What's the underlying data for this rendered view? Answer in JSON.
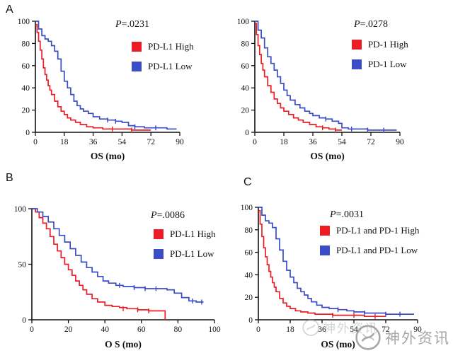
{
  "figure": {
    "section_labels": [
      {
        "text": "A"
      },
      {
        "text": "B"
      },
      {
        "text": "C"
      }
    ],
    "watermark": {
      "text": "神外资讯"
    }
  },
  "chart_data": [
    {
      "type": "line",
      "subtype": "kaplan-meier-step",
      "panel": "A-left",
      "p_label": "P",
      "p_value": "=.0231",
      "xlabel": "OS (mo)",
      "ylabel": "",
      "x_ticks": [
        0,
        18,
        36,
        54,
        72,
        90
      ],
      "y_ticks": [
        0,
        20,
        40,
        60,
        80,
        100
      ],
      "xlim": [
        0,
        90
      ],
      "ylim": [
        0,
        100
      ],
      "grid": false,
      "legend_position": "upper-right-inset",
      "legend": [
        {
          "label": "PD-L1 High",
          "color": "#ec1c24"
        },
        {
          "label": "PD-L1 Low",
          "color": "#3b4cc8"
        }
      ],
      "series": [
        {
          "name": "PD-L1 High",
          "color": "#ec1c24",
          "points": [
            [
              0,
              97
            ],
            [
              1,
              90
            ],
            [
              2,
              82
            ],
            [
              3,
              74
            ],
            [
              4,
              66
            ],
            [
              5,
              58
            ],
            [
              6,
              52
            ],
            [
              7,
              47
            ],
            [
              8,
              42
            ],
            [
              9,
              38
            ],
            [
              10,
              34
            ],
            [
              12,
              28
            ],
            [
              14,
              23
            ],
            [
              16,
              19
            ],
            [
              18,
              16
            ],
            [
              20,
              13
            ],
            [
              22,
              11
            ],
            [
              25,
              9
            ],
            [
              28,
              7
            ],
            [
              32,
              5
            ],
            [
              36,
              4
            ],
            [
              42,
              3
            ],
            [
              48,
              3
            ],
            [
              60,
              2
            ],
            [
              72,
              2
            ]
          ],
          "censor_marks": [
            [
              48,
              3
            ],
            [
              60,
              2
            ]
          ]
        },
        {
          "name": "PD-L1 Low",
          "color": "#3b4cc8",
          "points": [
            [
              0,
              100
            ],
            [
              2,
              93
            ],
            [
              4,
              87
            ],
            [
              6,
              84
            ],
            [
              8,
              82
            ],
            [
              10,
              78
            ],
            [
              12,
              73
            ],
            [
              14,
              66
            ],
            [
              16,
              55
            ],
            [
              18,
              46
            ],
            [
              20,
              40
            ],
            [
              22,
              34
            ],
            [
              24,
              28
            ],
            [
              26,
              24
            ],
            [
              28,
              21
            ],
            [
              30,
              19
            ],
            [
              33,
              17
            ],
            [
              36,
              14
            ],
            [
              40,
              12
            ],
            [
              45,
              11
            ],
            [
              50,
              10
            ],
            [
              54,
              9
            ],
            [
              58,
              6
            ],
            [
              62,
              5
            ],
            [
              68,
              4
            ],
            [
              75,
              4
            ],
            [
              82,
              3
            ],
            [
              88,
              3
            ]
          ],
          "censor_marks": [
            [
              45,
              11
            ],
            [
              50,
              10
            ],
            [
              62,
              5
            ],
            [
              75,
              4
            ]
          ]
        }
      ]
    },
    {
      "type": "line",
      "subtype": "kaplan-meier-step",
      "panel": "A-right",
      "p_label": "P",
      "p_value": "=.0278",
      "xlabel": "OS (mo)",
      "ylabel": "",
      "x_ticks": [
        0,
        18,
        36,
        54,
        72,
        90
      ],
      "y_ticks": [
        0,
        20,
        40,
        60,
        80,
        100
      ],
      "xlim": [
        0,
        90
      ],
      "ylim": [
        0,
        100
      ],
      "grid": false,
      "legend_position": "upper-right-inset",
      "legend": [
        {
          "label": "PD-1 High",
          "color": "#ec1c24"
        },
        {
          "label": "PD-1 Low",
          "color": "#3b4cc8"
        }
      ],
      "series": [
        {
          "name": "PD-1 High",
          "color": "#ec1c24",
          "points": [
            [
              0,
              98
            ],
            [
              1,
              88
            ],
            [
              2,
              78
            ],
            [
              3,
              70
            ],
            [
              4,
              62
            ],
            [
              5,
              56
            ],
            [
              6,
              50
            ],
            [
              8,
              42
            ],
            [
              10,
              36
            ],
            [
              12,
              30
            ],
            [
              14,
              26
            ],
            [
              16,
              22
            ],
            [
              18,
              19
            ],
            [
              21,
              16
            ],
            [
              24,
              13
            ],
            [
              27,
              11
            ],
            [
              30,
              9
            ],
            [
              34,
              7
            ],
            [
              38,
              5
            ],
            [
              42,
              4
            ],
            [
              46,
              3
            ],
            [
              50,
              2
            ],
            [
              54,
              2
            ]
          ],
          "censor_marks": [
            [
              42,
              4
            ],
            [
              50,
              2
            ]
          ]
        },
        {
          "name": "PD-1 Low",
          "color": "#3b4cc8",
          "points": [
            [
              0,
              100
            ],
            [
              2,
              92
            ],
            [
              4,
              85
            ],
            [
              6,
              76
            ],
            [
              8,
              68
            ],
            [
              10,
              62
            ],
            [
              12,
              56
            ],
            [
              14,
              50
            ],
            [
              16,
              44
            ],
            [
              18,
              38
            ],
            [
              20,
              33
            ],
            [
              22,
              29
            ],
            [
              25,
              25
            ],
            [
              28,
              22
            ],
            [
              31,
              19
            ],
            [
              34,
              17
            ],
            [
              36,
              15
            ],
            [
              40,
              13
            ],
            [
              44,
              12
            ],
            [
              48,
              10
            ],
            [
              52,
              8
            ],
            [
              54,
              4
            ],
            [
              58,
              3
            ],
            [
              70,
              2
            ],
            [
              80,
              2
            ],
            [
              88,
              2
            ]
          ],
          "censor_marks": [
            [
              44,
              12
            ],
            [
              60,
              3
            ],
            [
              70,
              2
            ],
            [
              80,
              2
            ]
          ]
        }
      ]
    },
    {
      "type": "line",
      "subtype": "kaplan-meier-step",
      "panel": "B",
      "p_label": "P",
      "p_value": "=.0086",
      "xlabel": "O S (mo)",
      "ylabel": "",
      "x_ticks": [
        0,
        20,
        40,
        60,
        80,
        100
      ],
      "y_ticks": [
        0,
        50,
        100
      ],
      "xlim": [
        0,
        100
      ],
      "ylim": [
        0,
        100
      ],
      "grid": false,
      "legend_position": "upper-right-inset",
      "legend": [
        {
          "label": "PD-L1 High",
          "color": "#ec1c24"
        },
        {
          "label": "PD-L1 Low",
          "color": "#3b4cc8"
        }
      ],
      "series": [
        {
          "name": "PD-L1 High",
          "color": "#ec1c24",
          "points": [
            [
              0,
              100
            ],
            [
              2,
              97
            ],
            [
              4,
              92
            ],
            [
              6,
              87
            ],
            [
              8,
              82
            ],
            [
              10,
              75
            ],
            [
              12,
              68
            ],
            [
              14,
              62
            ],
            [
              16,
              56
            ],
            [
              18,
              50
            ],
            [
              20,
              45
            ],
            [
              22,
              40
            ],
            [
              24,
              35
            ],
            [
              26,
              31
            ],
            [
              28,
              27
            ],
            [
              30,
              23
            ],
            [
              33,
              19
            ],
            [
              36,
              16
            ],
            [
              40,
              13
            ],
            [
              44,
              12
            ],
            [
              48,
              11
            ],
            [
              52,
              10
            ],
            [
              58,
              9
            ],
            [
              64,
              8
            ],
            [
              72,
              8
            ],
            [
              73,
              0
            ]
          ],
          "censor_marks": [
            [
              50,
              10
            ],
            [
              58,
              9
            ],
            [
              64,
              8
            ]
          ]
        },
        {
          "name": "PD-L1 Low",
          "color": "#3b4cc8",
          "points": [
            [
              0,
              100
            ],
            [
              3,
              97
            ],
            [
              6,
              93
            ],
            [
              9,
              88
            ],
            [
              12,
              82
            ],
            [
              15,
              76
            ],
            [
              18,
              70
            ],
            [
              21,
              64
            ],
            [
              24,
              58
            ],
            [
              27,
              52
            ],
            [
              30,
              47
            ],
            [
              33,
              43
            ],
            [
              36,
              39
            ],
            [
              39,
              35
            ],
            [
              42,
              33
            ],
            [
              46,
              31
            ],
            [
              50,
              30
            ],
            [
              56,
              29
            ],
            [
              62,
              28
            ],
            [
              68,
              28
            ],
            [
              74,
              27
            ],
            [
              78,
              24
            ],
            [
              82,
              20
            ],
            [
              86,
              17
            ],
            [
              90,
              16
            ],
            [
              94,
              16
            ]
          ],
          "censor_marks": [
            [
              48,
              31
            ],
            [
              56,
              29
            ],
            [
              62,
              28
            ],
            [
              68,
              28
            ],
            [
              88,
              17
            ],
            [
              93,
              16
            ]
          ]
        }
      ]
    },
    {
      "type": "line",
      "subtype": "kaplan-meier-step",
      "panel": "C",
      "p_label": "P",
      "p_value": "=.0031",
      "xlabel": "OS (mo)",
      "ylabel": "",
      "x_ticks": [
        0,
        18,
        36,
        54,
        72,
        90
      ],
      "y_ticks": [
        0,
        20,
        40,
        60,
        80,
        100
      ],
      "xlim": [
        0,
        90
      ],
      "ylim": [
        0,
        100
      ],
      "grid": false,
      "legend_position": "upper-right-inset",
      "legend": [
        {
          "label": "PD-L1 and PD-1 High",
          "color": "#ec1c24"
        },
        {
          "label": "PD-L1 and PD-1 Low",
          "color": "#3b4cc8"
        }
      ],
      "series": [
        {
          "name": "PD-L1 and PD-1 High",
          "color": "#ec1c24",
          "points": [
            [
              0,
              97
            ],
            [
              1,
              85
            ],
            [
              2,
              74
            ],
            [
              3,
              64
            ],
            [
              4,
              56
            ],
            [
              5,
              49
            ],
            [
              6,
              43
            ],
            [
              7,
              38
            ],
            [
              8,
              33
            ],
            [
              9,
              29
            ],
            [
              10,
              25
            ],
            [
              12,
              19
            ],
            [
              14,
              15
            ],
            [
              16,
              12
            ],
            [
              18,
              10
            ],
            [
              21,
              8
            ],
            [
              24,
              7
            ],
            [
              28,
              6
            ],
            [
              32,
              5
            ],
            [
              36,
              5
            ],
            [
              42,
              4
            ],
            [
              48,
              4
            ],
            [
              54,
              4
            ],
            [
              60,
              3
            ],
            [
              66,
              3
            ],
            [
              72,
              3
            ]
          ],
          "censor_marks": [
            [
              42,
              4
            ],
            [
              54,
              4
            ],
            [
              66,
              3
            ]
          ]
        },
        {
          "name": "PD-L1 and PD-1 Low",
          "color": "#3b4cc8",
          "points": [
            [
              0,
              100
            ],
            [
              2,
              93
            ],
            [
              4,
              88
            ],
            [
              6,
              86
            ],
            [
              8,
              82
            ],
            [
              10,
              72
            ],
            [
              12,
              62
            ],
            [
              14,
              52
            ],
            [
              16,
              44
            ],
            [
              18,
              38
            ],
            [
              20,
              33
            ],
            [
              22,
              28
            ],
            [
              24,
              25
            ],
            [
              26,
              22
            ],
            [
              28,
              19
            ],
            [
              30,
              16
            ],
            [
              33,
              13
            ],
            [
              36,
              11
            ],
            [
              40,
              10
            ],
            [
              45,
              9
            ],
            [
              50,
              8
            ],
            [
              54,
              7
            ],
            [
              60,
              6
            ],
            [
              66,
              6
            ],
            [
              72,
              5
            ],
            [
              80,
              5
            ],
            [
              88,
              5
            ]
          ],
          "censor_marks": [
            [
              45,
              9
            ],
            [
              60,
              6
            ],
            [
              72,
              5
            ],
            [
              80,
              5
            ]
          ]
        }
      ]
    }
  ]
}
